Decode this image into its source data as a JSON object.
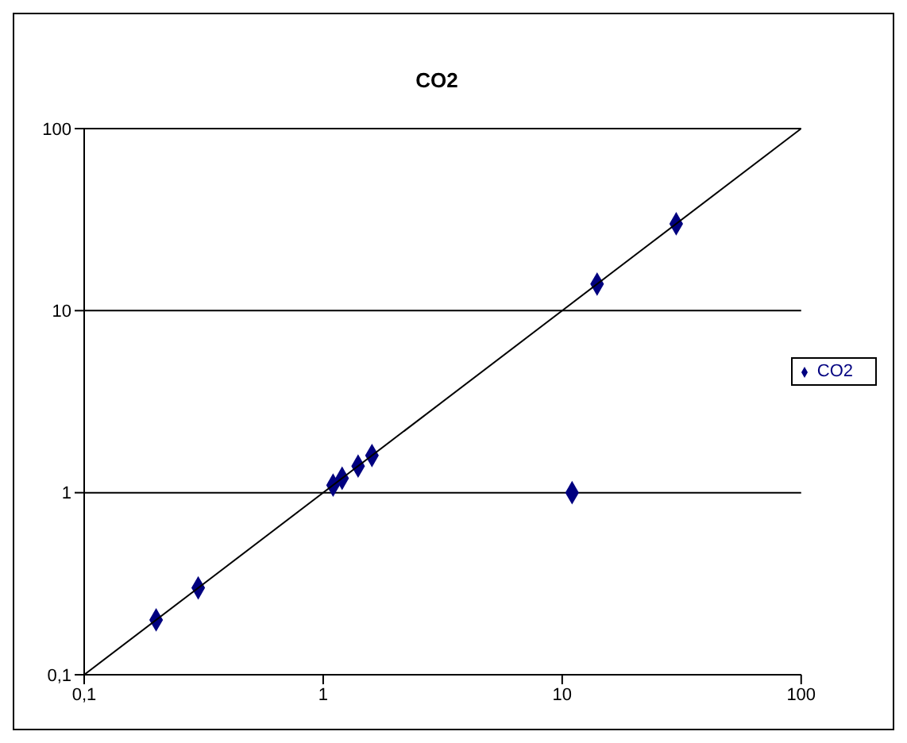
{
  "chart_data": {
    "type": "scatter",
    "title": "CO2",
    "series": [
      {
        "name": "CO2",
        "color": "#000080",
        "x": [
          0.2,
          0.3,
          1.1,
          1.2,
          1.4,
          1.6,
          11,
          14,
          30
        ],
        "values": [
          0.2,
          0.3,
          1.1,
          1.2,
          1.4,
          1.6,
          1,
          14,
          30
        ],
        "marker": "diamond"
      },
      {
        "type": "line",
        "color": "#000000",
        "x": [
          0.1,
          100
        ],
        "values": [
          0.1,
          100
        ],
        "marker": "none"
      }
    ],
    "log": "xy",
    "xlim": [
      0.1,
      100
    ],
    "ylim": [
      0.1,
      100
    ],
    "xticks": [
      {
        "value": 0.1,
        "label": "0,1"
      },
      1,
      10,
      100
    ],
    "yticks": [
      {
        "value": 0.1,
        "label": "0,1"
      },
      1,
      10,
      100
    ],
    "grid": "y",
    "legend": "right"
  }
}
